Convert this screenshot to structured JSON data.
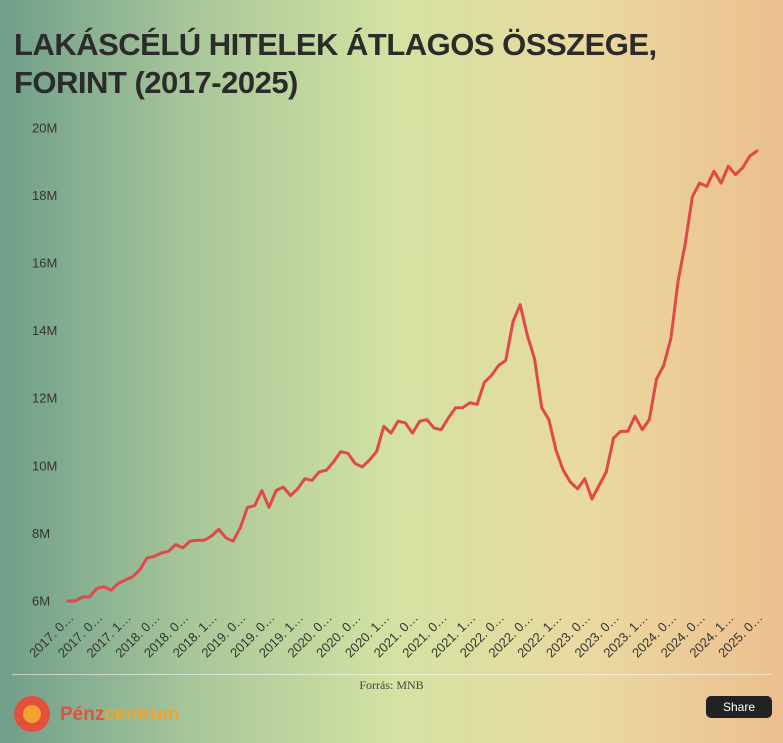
{
  "chart_data": {
    "type": "line",
    "title": "LAKÁSCÉLÚ HITELEK ÁTLAGOS ÖSSZEGE, FORINT (2017-2025)",
    "categories": [
      "2017. 0…",
      null,
      null,
      null,
      "2017. 0…",
      null,
      null,
      null,
      "2017. 1…",
      null,
      null,
      null,
      "2018. 0…",
      null,
      null,
      null,
      "2018. 0…",
      null,
      null,
      null,
      "2018. 1…",
      null,
      null,
      null,
      "2019. 0…",
      null,
      null,
      null,
      "2019. 0…",
      null,
      null,
      null,
      "2019. 1…",
      null,
      null,
      null,
      "2020. 0…",
      null,
      null,
      null,
      "2020. 0…",
      null,
      null,
      null,
      "2020. 1…",
      null,
      null,
      null,
      "2021. 0…",
      null,
      null,
      null,
      "2021. 0…",
      null,
      null,
      null,
      "2021. 1…",
      null,
      null,
      null,
      "2022. 0…",
      null,
      null,
      null,
      "2022. 0…",
      null,
      null,
      null,
      "2022. 1…",
      null,
      null,
      null,
      "2023. 0…",
      null,
      null,
      null,
      "2023. 0…",
      null,
      null,
      null,
      "2023. 1…",
      null,
      null,
      null,
      "2024. 0…",
      null,
      null,
      null,
      "2024. 0…",
      null,
      null,
      null,
      "2024. 1…",
      null,
      null,
      null,
      "2025. 0…"
    ],
    "values": [
      6.03,
      6.03,
      6.15,
      6.15,
      6.4,
      6.45,
      6.35,
      6.55,
      6.65,
      6.75,
      6.95,
      7.3,
      7.35,
      7.45,
      7.5,
      7.7,
      7.6,
      7.8,
      7.83,
      7.83,
      7.95,
      8.15,
      7.9,
      7.8,
      8.2,
      8.8,
      8.85,
      9.3,
      8.8,
      9.3,
      9.4,
      9.15,
      9.35,
      9.65,
      9.6,
      9.85,
      9.9,
      10.15,
      10.45,
      10.4,
      10.1,
      10.0,
      10.2,
      10.45,
      11.2,
      11.0,
      11.35,
      11.3,
      11.0,
      11.35,
      11.4,
      11.15,
      11.1,
      11.45,
      11.75,
      11.75,
      11.9,
      11.85,
      12.5,
      12.7,
      13.0,
      13.15,
      14.3,
      14.8,
      13.9,
      13.2,
      11.75,
      11.4,
      10.5,
      9.9,
      9.55,
      9.35,
      9.65,
      9.05,
      9.45,
      9.85,
      10.85,
      11.05,
      11.05,
      11.5,
      11.1,
      11.4,
      12.6,
      13.0,
      13.8,
      15.5,
      16.6,
      18.0,
      18.4,
      18.3,
      18.75,
      18.4,
      18.9,
      18.65,
      18.85,
      19.2,
      19.35
    ],
    "color": "#e0484a",
    "ylim": [
      6,
      20
    ],
    "yticks": [
      {
        "value": 6,
        "label": "6M"
      },
      {
        "value": 8,
        "label": "8M"
      },
      {
        "value": 10,
        "label": "10M"
      },
      {
        "value": 12,
        "label": "12M"
      },
      {
        "value": 14,
        "label": "14M"
      },
      {
        "value": 16,
        "label": "16M"
      },
      {
        "value": 18,
        "label": "18M"
      },
      {
        "value": 20,
        "label": "20M"
      }
    ],
    "grid": false
  },
  "source": "Forrás: MNB",
  "brand": {
    "first": "Pénz",
    "second": "centrum"
  },
  "share": "Share"
}
